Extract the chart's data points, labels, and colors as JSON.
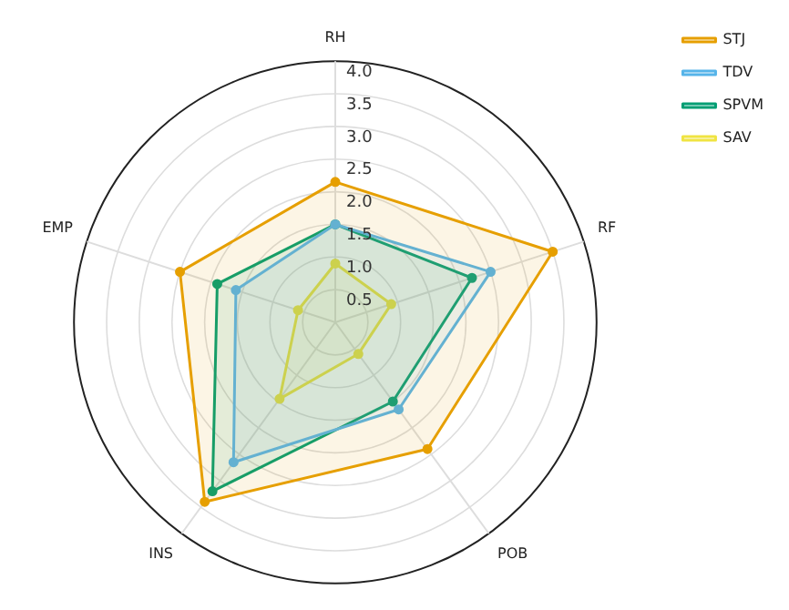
{
  "chart_data": {
    "type": "radar",
    "categories": [
      "RH",
      "RF",
      "POB",
      "INS",
      "EMP"
    ],
    "series": [
      {
        "name": "STJ",
        "color": "#e69f00",
        "values": [
          2.15,
          3.5,
          2.4,
          3.4,
          2.5
        ]
      },
      {
        "name": "TDV",
        "color": "#56b4e9",
        "values": [
          1.5,
          2.5,
          1.65,
          2.65,
          1.6
        ]
      },
      {
        "name": "SPVM",
        "color": "#009e73",
        "values": [
          1.5,
          2.2,
          1.5,
          3.2,
          1.9
        ]
      },
      {
        "name": "SAV",
        "color": "#f0e442",
        "values": [
          0.9,
          0.9,
          0.6,
          1.45,
          0.6
        ]
      }
    ],
    "ylim": [
      0,
      4
    ],
    "yticks": [
      0.5,
      {
        "value": 1,
        "label": "1.0"
      },
      1.5,
      {
        "value": 2,
        "label": "2.0"
      },
      2.5,
      {
        "value": 3,
        "label": "3.0"
      },
      3.5,
      {
        "value": 4,
        "label": "4.0"
      }
    ],
    "grid": true,
    "legend": "top right",
    "marker": "circle",
    "line_style": "solid"
  }
}
